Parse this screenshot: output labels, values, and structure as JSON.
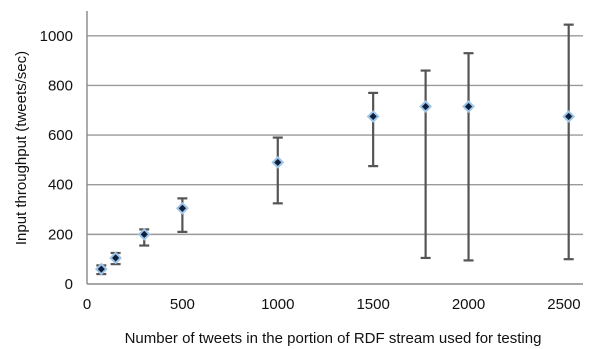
{
  "chart_data": {
    "type": "scatter",
    "xlabel": "Number of tweets in the portion of RDF stream used for testing",
    "ylabel": "Input throughput (tweets/sec)",
    "xlim": [
      0,
      2600
    ],
    "ylim": [
      0,
      1100
    ],
    "xticks": [
      0,
      500,
      1000,
      1500,
      2000,
      2500
    ],
    "yticks": [
      0,
      200,
      400,
      600,
      800,
      1000
    ],
    "grid": "horizontal",
    "points": [
      {
        "x": 75,
        "y": 60,
        "low": 40,
        "high": 75
      },
      {
        "x": 150,
        "y": 105,
        "low": 80,
        "high": 125
      },
      {
        "x": 300,
        "y": 200,
        "low": 155,
        "high": 220
      },
      {
        "x": 500,
        "y": 305,
        "low": 210,
        "high": 345
      },
      {
        "x": 1000,
        "y": 490,
        "low": 325,
        "high": 590
      },
      {
        "x": 1500,
        "y": 675,
        "low": 475,
        "high": 770
      },
      {
        "x": 1775,
        "y": 715,
        "low": 105,
        "high": 860
      },
      {
        "x": 2000,
        "y": 715,
        "low": 95,
        "high": 930
      },
      {
        "x": 2525,
        "y": 675,
        "low": 100,
        "high": 1045
      }
    ]
  }
}
